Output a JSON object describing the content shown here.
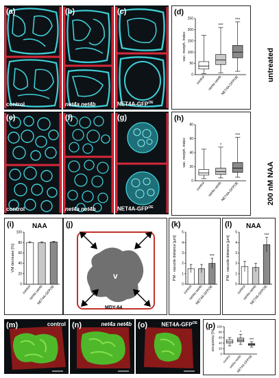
{
  "panels": {
    "a": {
      "label": "(a)",
      "caption": "control"
    },
    "b": {
      "label": "(b)",
      "caption": "net4a net4b"
    },
    "c": {
      "label": "(c)",
      "caption": "NET4A-GFP",
      "caption_sup": "OE"
    },
    "e": {
      "label": "(e)",
      "caption": "control"
    },
    "f": {
      "label": "(f)",
      "caption": "net4a net4b"
    },
    "g": {
      "label": "(g)",
      "caption": "NET4A-GFP",
      "caption_sup": "OE"
    },
    "d": {
      "label": "(d)"
    },
    "h": {
      "label": "(h)"
    },
    "i": {
      "label": "(i)",
      "title": "NAA"
    },
    "j": {
      "label": "(j)",
      "v_label": "v",
      "caption": "MDY-64"
    },
    "k": {
      "label": "(k)"
    },
    "l": {
      "label": "(l)",
      "title": "NAA"
    },
    "m": {
      "label": "(m)",
      "caption": "control"
    },
    "n": {
      "label": "(n)",
      "caption": "net4a net4b"
    },
    "o": {
      "label": "(o)",
      "caption": "NET4A-GFP",
      "caption_sup": "OE"
    },
    "p": {
      "label": "(p)"
    }
  },
  "side_labels": {
    "untreated": "untreated",
    "naa": "200 nM NAA"
  },
  "categories": [
    "control",
    "net4a net4b",
    "NET4A-GFPOE"
  ],
  "charts": {
    "d": {
      "type": "box",
      "ylabel": "vac. morph. index",
      "ylim": [
        0,
        250
      ],
      "ticks": [
        0,
        50,
        100,
        150,
        200,
        250
      ],
      "boxes": [
        {
          "min": 5,
          "q1": 25,
          "median": 38,
          "q3": 58,
          "max": 175,
          "sig": ""
        },
        {
          "min": 8,
          "q1": 45,
          "median": 65,
          "q3": 90,
          "max": 210,
          "sig": "***"
        },
        {
          "min": 15,
          "q1": 75,
          "median": 100,
          "q3": 130,
          "max": 235,
          "sig": "***"
        }
      ],
      "colors": [
        "#ffffff",
        "#c8c8c8",
        "#8a8a8a"
      ]
    },
    "h": {
      "type": "box",
      "ylabel": "vac. morph. index",
      "ylim": [
        0,
        80
      ],
      "ticks": [
        0,
        20,
        40,
        60,
        80
      ],
      "boxes": [
        {
          "min": 3,
          "q1": 8,
          "median": 11,
          "q3": 16,
          "max": 45,
          "sig": ""
        },
        {
          "min": 4,
          "q1": 9,
          "median": 13,
          "q3": 18,
          "max": 48,
          "sig": "*"
        },
        {
          "min": 5,
          "q1": 12,
          "median": 18,
          "q3": 26,
          "max": 62,
          "sig": "***"
        }
      ],
      "colors": [
        "#ffffff",
        "#c8c8c8",
        "#8a8a8a"
      ]
    },
    "i": {
      "type": "bar",
      "ylabel": "VM decrease [%]",
      "ylim": [
        0,
        100
      ],
      "ticks": [
        0,
        20,
        40,
        60,
        80,
        100
      ],
      "values": [
        80,
        80,
        81
      ],
      "errors": [
        1.5,
        1.5,
        1.5
      ],
      "sig": [
        "",
        "",
        ""
      ],
      "colors": [
        "#ffffff",
        "#c8c8c8",
        "#8a8a8a"
      ]
    },
    "k": {
      "type": "bar",
      "ylabel": "PM - vacuole distance [µm]",
      "ylim": [
        0,
        5
      ],
      "ticks": [
        0,
        1,
        2,
        3,
        4,
        5
      ],
      "values": [
        1.5,
        1.5,
        2.0
      ],
      "errors": [
        0.4,
        0.4,
        0.5
      ],
      "sig": [
        "",
        "",
        "***"
      ],
      "colors": [
        "#ffffff",
        "#c8c8c8",
        "#8a8a8a"
      ]
    },
    "l": {
      "type": "bar",
      "ylabel": "PM - vacuole distance [µm]",
      "ylim": [
        0,
        5
      ],
      "ticks": [
        0,
        1,
        2,
        3,
        4,
        5
      ],
      "values": [
        1.7,
        1.6,
        3.8
      ],
      "errors": [
        0.5,
        0.4,
        0.7
      ],
      "sig": [
        "",
        "",
        "***"
      ],
      "colors": [
        "#ffffff",
        "#c8c8c8",
        "#8a8a8a"
      ]
    },
    "p": {
      "type": "box",
      "ylabel": "occupancy [%]",
      "ylim": [
        0,
        100
      ],
      "ticks": [
        0,
        20,
        40,
        60,
        80,
        100
      ],
      "boxes": [
        {
          "min": 30,
          "q1": 40,
          "median": 45,
          "q3": 52,
          "max": 60,
          "sig": ""
        },
        {
          "min": 35,
          "q1": 45,
          "median": 50,
          "q3": 58,
          "max": 72,
          "sig": "*"
        },
        {
          "min": 25,
          "q1": 32,
          "median": 35,
          "q3": 38,
          "max": 45,
          "sig": "***"
        }
      ],
      "colors": [
        "#ffffff",
        "#c8c8c8",
        "#8a8a8a"
      ]
    }
  }
}
